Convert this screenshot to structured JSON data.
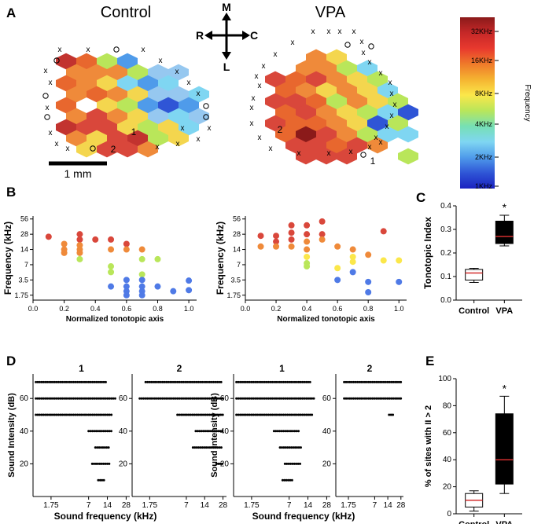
{
  "panels": {
    "A": "A",
    "B": "B",
    "C": "C",
    "D": "D",
    "E": "E"
  },
  "panel_a": {
    "control_title": "Control",
    "vpa_title": "VPA",
    "compass": {
      "up": "M",
      "down": "L",
      "left": "R",
      "right": "C"
    },
    "scale_bar_label": "1 mm",
    "control_labels": [
      "1",
      "2"
    ],
    "vpa_labels": [
      "1",
      "2"
    ],
    "colorbar": {
      "ticks": [
        "32KHz",
        "16KHz",
        "8KHz",
        "4KHz",
        "2KHz",
        "1KHz"
      ],
      "title": "Frequency",
      "colors": [
        "#8b1a1a",
        "#c62828",
        "#e8392e",
        "#ef7a2a",
        "#f5b431",
        "#fbe74a",
        "#b9e65a",
        "#76e0b4",
        "#7fd6f2",
        "#4f9bea",
        "#2f55d6",
        "#1a22c0"
      ]
    },
    "control_map_colors": [
      "#d9473b",
      "#ef8a3a",
      "#b9e65a",
      "#f4d64e",
      "#7fd6f2",
      "#4f9bea",
      "#c2332f",
      "#e8672e",
      "#96c8f0",
      "#2f55d6"
    ],
    "vpa_map_colors": [
      "#d9473b",
      "#ef8a3a",
      "#f4d64e",
      "#b9e65a",
      "#7fd6f2",
      "#4f9bea",
      "#8b1a1a",
      "#e8672e",
      "#2f55d6"
    ]
  },
  "chart_data": [
    {
      "id": "B-control",
      "type": "scatter",
      "xlabel": "Normalized tonotopic axis",
      "ylabel": "Frequency (kHz)",
      "xlim": [
        0,
        1.05
      ],
      "ylim_log2": [
        1.4,
        64
      ],
      "yticks": [
        "56",
        "28",
        "14",
        "7",
        "3.5",
        "1.75"
      ],
      "xticks": [
        "0.0",
        "0.2",
        "0.4",
        "0.6",
        "0.8",
        "1.0"
      ],
      "points": [
        {
          "x": 0.1,
          "y": 25,
          "c": "#d9473b"
        },
        {
          "x": 0.2,
          "y": 18,
          "c": "#ef8a3a"
        },
        {
          "x": 0.2,
          "y": 14,
          "c": "#ef8a3a"
        },
        {
          "x": 0.2,
          "y": 12,
          "c": "#ef8a3a"
        },
        {
          "x": 0.3,
          "y": 28,
          "c": "#d9473b"
        },
        {
          "x": 0.3,
          "y": 22,
          "c": "#d9473b"
        },
        {
          "x": 0.3,
          "y": 17,
          "c": "#ef8a3a"
        },
        {
          "x": 0.3,
          "y": 14,
          "c": "#ef8a3a"
        },
        {
          "x": 0.3,
          "y": 12,
          "c": "#ef8a3a"
        },
        {
          "x": 0.3,
          "y": 9,
          "c": "#b9e65a"
        },
        {
          "x": 0.4,
          "y": 22,
          "c": "#d9473b"
        },
        {
          "x": 0.5,
          "y": 22,
          "c": "#d9473b"
        },
        {
          "x": 0.5,
          "y": 14,
          "c": "#ef8a3a"
        },
        {
          "x": 0.5,
          "y": 6.5,
          "c": "#b9e65a"
        },
        {
          "x": 0.5,
          "y": 5,
          "c": "#b9e65a"
        },
        {
          "x": 0.5,
          "y": 2.6,
          "c": "#4f7ae6"
        },
        {
          "x": 0.6,
          "y": 18,
          "c": "#d9473b"
        },
        {
          "x": 0.6,
          "y": 14,
          "c": "#ef8a3a"
        },
        {
          "x": 0.6,
          "y": 3.5,
          "c": "#4f7ae6"
        },
        {
          "x": 0.6,
          "y": 2.6,
          "c": "#4f7ae6"
        },
        {
          "x": 0.6,
          "y": 2.1,
          "c": "#4f7ae6"
        },
        {
          "x": 0.6,
          "y": 1.75,
          "c": "#4f7ae6"
        },
        {
          "x": 0.7,
          "y": 14,
          "c": "#ef8a3a"
        },
        {
          "x": 0.7,
          "y": 9,
          "c": "#b9e65a"
        },
        {
          "x": 0.7,
          "y": 4.5,
          "c": "#b9e65a"
        },
        {
          "x": 0.7,
          "y": 3.5,
          "c": "#4f7ae6"
        },
        {
          "x": 0.7,
          "y": 2.6,
          "c": "#4f7ae6"
        },
        {
          "x": 0.7,
          "y": 2.1,
          "c": "#4f7ae6"
        },
        {
          "x": 0.7,
          "y": 1.75,
          "c": "#4f7ae6"
        },
        {
          "x": 0.8,
          "y": 9,
          "c": "#b9e65a"
        },
        {
          "x": 0.8,
          "y": 2.6,
          "c": "#4f7ae6"
        },
        {
          "x": 0.9,
          "y": 2.1,
          "c": "#4f7ae6"
        },
        {
          "x": 1.0,
          "y": 3.4,
          "c": "#4f7ae6"
        },
        {
          "x": 1.0,
          "y": 2.2,
          "c": "#4f7ae6"
        }
      ]
    },
    {
      "id": "B-vpa",
      "type": "scatter",
      "xlabel": "Normalized tonotopic axis",
      "ylabel": "Frequency (kHz)",
      "xlim": [
        0,
        1.05
      ],
      "ylim_log2": [
        1.4,
        64
      ],
      "yticks": [
        "56",
        "28",
        "14",
        "7",
        "3.5",
        "1.75"
      ],
      "xticks": [
        "0.0",
        "0.2",
        "0.4",
        "0.6",
        "0.8",
        "1.0"
      ],
      "points": [
        {
          "x": 0.1,
          "y": 26,
          "c": "#d9473b"
        },
        {
          "x": 0.1,
          "y": 16,
          "c": "#ef8a3a"
        },
        {
          "x": 0.2,
          "y": 26,
          "c": "#d9473b"
        },
        {
          "x": 0.2,
          "y": 20,
          "c": "#d9473b"
        },
        {
          "x": 0.2,
          "y": 16,
          "c": "#ef8a3a"
        },
        {
          "x": 0.3,
          "y": 42,
          "c": "#d9473b"
        },
        {
          "x": 0.3,
          "y": 30,
          "c": "#d9473b"
        },
        {
          "x": 0.3,
          "y": 22,
          "c": "#d9473b"
        },
        {
          "x": 0.3,
          "y": 16,
          "c": "#ef8a3a"
        },
        {
          "x": 0.4,
          "y": 42,
          "c": "#d9473b"
        },
        {
          "x": 0.4,
          "y": 28,
          "c": "#d9473b"
        },
        {
          "x": 0.4,
          "y": 20,
          "c": "#ef8a3a"
        },
        {
          "x": 0.4,
          "y": 14,
          "c": "#ef8a3a"
        },
        {
          "x": 0.4,
          "y": 10,
          "c": "#fbe74a"
        },
        {
          "x": 0.4,
          "y": 7.5,
          "c": "#b9e65a"
        },
        {
          "x": 0.4,
          "y": 6.5,
          "c": "#b9e65a"
        },
        {
          "x": 0.5,
          "y": 50,
          "c": "#d9473b"
        },
        {
          "x": 0.5,
          "y": 28,
          "c": "#d9473b"
        },
        {
          "x": 0.5,
          "y": 22,
          "c": "#ef8a3a"
        },
        {
          "x": 0.6,
          "y": 16,
          "c": "#ef8a3a"
        },
        {
          "x": 0.6,
          "y": 6,
          "c": "#fbe74a"
        },
        {
          "x": 0.6,
          "y": 3.5,
          "c": "#4f7ae6"
        },
        {
          "x": 0.7,
          "y": 14,
          "c": "#ef8a3a"
        },
        {
          "x": 0.7,
          "y": 10,
          "c": "#fbe74a"
        },
        {
          "x": 0.7,
          "y": 8,
          "c": "#fbe74a"
        },
        {
          "x": 0.7,
          "y": 5,
          "c": "#4f7ae6"
        },
        {
          "x": 0.8,
          "y": 11,
          "c": "#ef8a3a"
        },
        {
          "x": 0.8,
          "y": 3.2,
          "c": "#4f7ae6"
        },
        {
          "x": 0.8,
          "y": 2,
          "c": "#4f7ae6"
        },
        {
          "x": 0.9,
          "y": 32,
          "c": "#d9473b"
        },
        {
          "x": 0.9,
          "y": 8.5,
          "c": "#fbe74a"
        },
        {
          "x": 1.0,
          "y": 8.5,
          "c": "#fbe74a"
        },
        {
          "x": 1.0,
          "y": 3.2,
          "c": "#4f7ae6"
        }
      ]
    },
    {
      "id": "C",
      "type": "box",
      "ylabel": "Tonotopic Index",
      "categories": [
        "Control",
        "VPA"
      ],
      "ylim": [
        0,
        0.4
      ],
      "yticks": [
        "0.0",
        "0.1",
        "0.2",
        "0.3",
        "0.4"
      ],
      "boxes": [
        {
          "min": 0.075,
          "q1": 0.085,
          "median": 0.115,
          "q3": 0.13,
          "max": 0.135
        },
        {
          "min": 0.23,
          "q1": 0.24,
          "median": 0.27,
          "q3": 0.335,
          "max": 0.36
        }
      ],
      "annotation": "*"
    },
    {
      "id": "D",
      "type": "scatter",
      "ylabel": "Sound Intensity (dB)",
      "xlabel": "Sound frequency (kHz)",
      "xticks": [
        "1.75",
        "7",
        "14",
        "28"
      ],
      "yticks": [
        "20",
        "40",
        "60"
      ],
      "titles": [
        "1",
        "2",
        "1",
        "2"
      ],
      "note": "raster of responsive sites: for each intensity (dB) the frequency range (kHz, log) of responses",
      "panels": [
        {
          "name": "Control site 1",
          "rows": [
            {
              "db": 70,
              "from": 1.0,
              "to": 14
            },
            {
              "db": 60,
              "from": 1.0,
              "to": 19
            },
            {
              "db": 50,
              "from": 1.0,
              "to": 17
            },
            {
              "db": 40,
              "from": 7,
              "to": 17
            },
            {
              "db": 30,
              "from": 9,
              "to": 15
            },
            {
              "db": 20,
              "from": 8,
              "to": 16
            },
            {
              "db": 10,
              "from": 10,
              "to": 13
            }
          ]
        },
        {
          "name": "Control site 2",
          "rows": [
            {
              "db": 70,
              "from": 1.5,
              "to": 28
            },
            {
              "db": 60,
              "from": 1.2,
              "to": 28
            },
            {
              "db": 50,
              "from": 5,
              "to": 28
            },
            {
              "db": 40,
              "from": 10,
              "to": 28
            },
            {
              "db": 30,
              "from": 9,
              "to": 28
            },
            {
              "db": 20,
              "from": 22,
              "to": 28
            }
          ]
        },
        {
          "name": "VPA site 1",
          "rows": [
            {
              "db": 70,
              "from": 1.0,
              "to": 16
            },
            {
              "db": 60,
              "from": 1.0,
              "to": 18
            },
            {
              "db": 50,
              "from": 1.0,
              "to": 17
            },
            {
              "db": 40,
              "from": 4,
              "to": 10
            },
            {
              "db": 30,
              "from": 5,
              "to": 11
            },
            {
              "db": 20,
              "from": 6,
              "to": 11
            },
            {
              "db": 10,
              "from": 5.5,
              "to": 8
            }
          ]
        },
        {
          "name": "VPA site 2",
          "rows": [
            {
              "db": 70,
              "from": 1.4,
              "to": 28
            },
            {
              "db": 60,
              "from": 1.4,
              "to": 28
            },
            {
              "db": 50,
              "from": 15,
              "to": 20
            }
          ]
        }
      ]
    },
    {
      "id": "E",
      "type": "box",
      "ylabel": "% of sites with II > 2",
      "categories": [
        "Control",
        "VPA"
      ],
      "ylim": [
        0,
        100
      ],
      "yticks": [
        "0",
        "20",
        "40",
        "60",
        "80",
        "100"
      ],
      "boxes": [
        {
          "min": 2,
          "q1": 5,
          "median": 10,
          "q3": 15,
          "max": 17
        },
        {
          "min": 15,
          "q1": 22,
          "median": 40,
          "q3": 74,
          "max": 87
        }
      ],
      "annotation": "*"
    }
  ]
}
